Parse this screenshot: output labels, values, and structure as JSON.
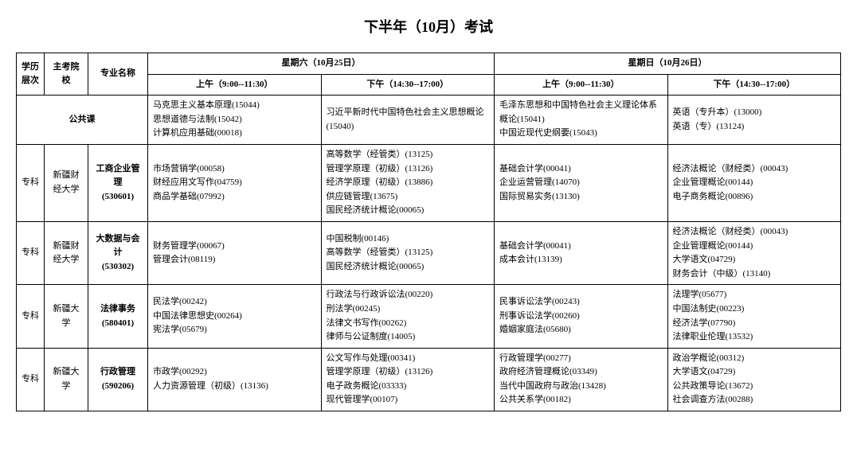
{
  "title": "下半年（10月）考试",
  "headers": {
    "level": "学历层次",
    "school": "主考院校",
    "major": "专业名称",
    "day1": "星期六（10月25日）",
    "day2": "星期日（10月26日）",
    "am": "上午（9:00--11:30）",
    "pm": "下午（14:30--17:00）"
  },
  "public_course_label": "公共课",
  "rows": [
    {
      "is_public": true,
      "sat_am": [
        "马克思主义基本原理(15044)",
        "思想道德与法制(15042)",
        "计算机应用基础(00018)"
      ],
      "sat_pm": [
        "习近平新时代中国特色社会主义思想概论(15040)"
      ],
      "sun_am": [
        "毛泽东思想和中国特色社会主义理论体系概论(15041)",
        "中国近现代史纲要(15043)"
      ],
      "sun_pm": [
        "英语（专升本）(13000)",
        "英语（专）(13124)"
      ]
    },
    {
      "level": "专科",
      "school": "新疆财经大学",
      "major": "工商企业管理(530601)",
      "sat_am": [
        "市场营销学(00058)",
        "财经应用文写作(04759)",
        "商品学基础(07992)"
      ],
      "sat_pm": [
        "高等数学（经管类）(13125)",
        "管理学原理（初级）(13126)",
        "经济学原理（初级）(13886)",
        "供应链管理(13675)",
        "国民经济统计概论(00065)"
      ],
      "sun_am": [
        "基础会计学(00041)",
        "企业运营管理(14070)",
        "国际贸易实务(13130)"
      ],
      "sun_pm": [
        "经济法概论（财经类）(00043)",
        "企业管理概论(00144)",
        "电子商务概论(00896)"
      ]
    },
    {
      "level": "专科",
      "school": "新疆财经大学",
      "major": "大数据与会计(530302)",
      "sat_am": [
        "财务管理学(00067)",
        "管理会计(08119)"
      ],
      "sat_pm": [
        "中国税制(00146)",
        "高等数学（经管类）(13125)",
        "国民经济统计概论(00065)"
      ],
      "sun_am": [
        "基础会计学(00041)",
        "成本会计(13139)"
      ],
      "sun_pm": [
        "经济法概论（财经类）(00043)",
        "企业管理概论(00144)",
        "大学语文(04729)",
        "财务会计（中级）(13140)"
      ]
    },
    {
      "level": "专科",
      "school": "新疆大学",
      "major": "法律事务(580401)",
      "sat_am": [
        "民法学(00242)",
        "中国法律思想史(00264)",
        "宪法学(05679)"
      ],
      "sat_pm": [
        "行政法与行政诉讼法(00220)",
        "刑法学(00245)",
        "法律文书写作(00262)",
        "律师与公证制度(14005)"
      ],
      "sun_am": [
        "民事诉讼法学(00243)",
        "刑事诉讼法学(00260)",
        "婚姻家庭法(05680)"
      ],
      "sun_pm": [
        "法理学(05677)",
        "中国法制史(00223)",
        "经济法学(07790)",
        "法律职业伦理(13532)"
      ]
    },
    {
      "level": "专科",
      "school": "新疆大学",
      "major": "行政管理(590206)",
      "sat_am": [
        "市政学(00292)",
        "人力资源管理（初级）(13136)"
      ],
      "sat_pm": [
        "公文写作与处理(00341)",
        "管理学原理（初级）(13126)",
        "电子政务概论(03333)",
        "现代管理学(00107)"
      ],
      "sun_am": [
        "行政管理学(00277)",
        "政府经济管理概论(03349)",
        "当代中国政府与政治(13428)",
        "公共关系学(00182)"
      ],
      "sun_pm": [
        "政治学概论(00312)",
        "大学语文(04729)",
        "公共政策导论(13672)",
        "社会调查方法(00288)"
      ]
    }
  ]
}
